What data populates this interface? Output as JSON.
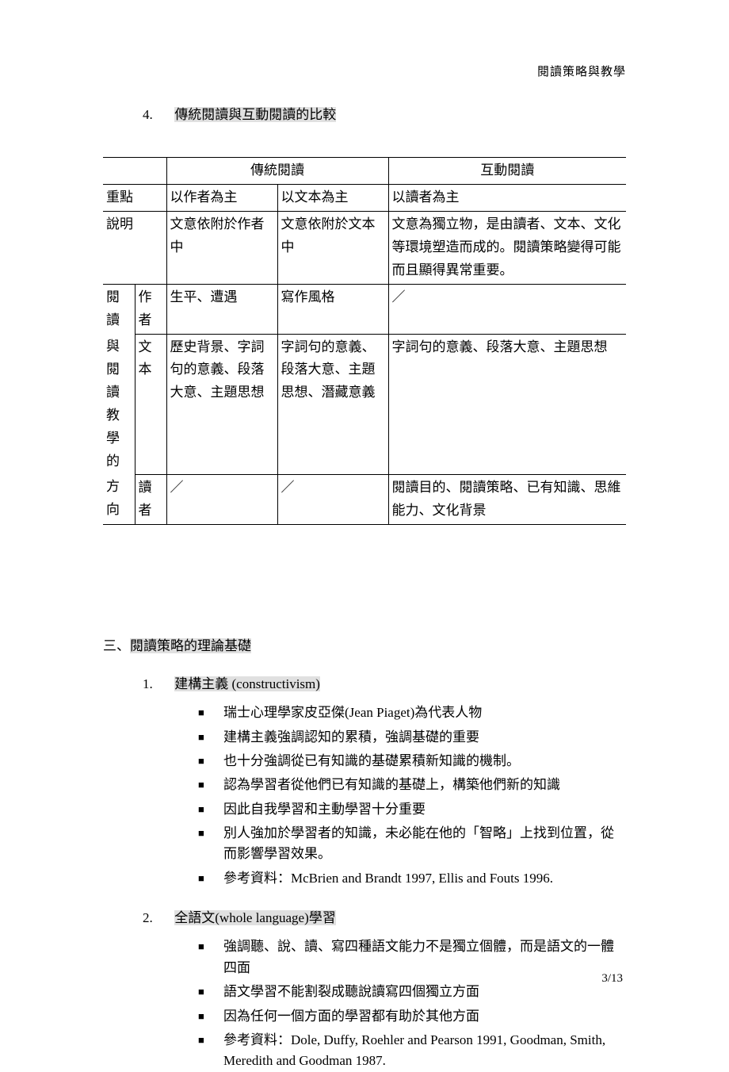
{
  "header": {
    "running_title": "閱讀策略與教學"
  },
  "section4": {
    "num": "4.",
    "title": "傳統閱讀與互動閱讀的比較"
  },
  "table": {
    "h_trad": "傳統閱讀",
    "h_inter": "互動閱讀",
    "r1_label": "重點",
    "r1_c1": "以作者為主",
    "r1_c2": "以文本為主",
    "r1_c3": "以讀者為主",
    "r2_label": "說明",
    "r2_c1": "文意依附於作者中",
    "r2_c2": "文意依附於文本中",
    "r2_c3": "文意為獨立物，是由讀者、文本、文化等環境塑造而成的。閱讀策略變得可能而且顯得異常重要。",
    "vlabel_1": "閱讀",
    "vlabel_2": "與閱",
    "vlabel_3": "讀教",
    "vlabel_4": "學的",
    "vlabel_5": "方向",
    "sub_author": "作者",
    "sub_text": "文本",
    "sub_reader": "讀者",
    "r3_c1": "生平、遭遇",
    "r3_c2": "寫作風格",
    "r3_c3": "／",
    "r4_c1": "歷史背景、字詞句的意義、段落大意、主題思想",
    "r4_c2": "字詞句的意義、段落大意、主題思想、潛藏意義",
    "r4_c3": "字詞句的意義、段落大意、主題思想",
    "r5_c1": "／",
    "r5_c2": "／",
    "r5_c3": "閱讀目的、閱讀策略、已有知識、思維能力、文化背景"
  },
  "section3": {
    "prefix": "三、",
    "title": "閱讀策略的理論基礎",
    "item1": {
      "num": "1.",
      "title": "建構主義  (constructivism)",
      "bullets": [
        "瑞士心理學家皮亞傑(Jean Piaget)為代表人物",
        "建構主義強調認知的累積，強調基礎的重要",
        "也十分強調從已有知識的基礎累積新知識的機制。",
        "認為學習者從他們已有知識的基礎上，構築他們新的知識",
        "因此自我學習和主動學習十分重要",
        "別人強加於學習者的知識，未必能在他的「智略」上找到位置，從而影響學習效果。",
        "參考資料：McBrien and Brandt 1997, Ellis and Fouts 1996."
      ]
    },
    "item2": {
      "num": "2.",
      "title": "全語文(whole language)學習",
      "bullets": [
        "強調聽、說、讀、寫四種語文能力不是獨立個體，而是語文的一體四面",
        "語文學習不能割裂成聽說讀寫四個獨立方面",
        "因為任何一個方面的學習都有助於其他方面",
        "參考資料：Dole, Duffy, Roehler and Pearson 1991, Goodman, Smith, Meredith and Goodman 1987."
      ]
    }
  },
  "footer": {
    "page": "3/13"
  }
}
